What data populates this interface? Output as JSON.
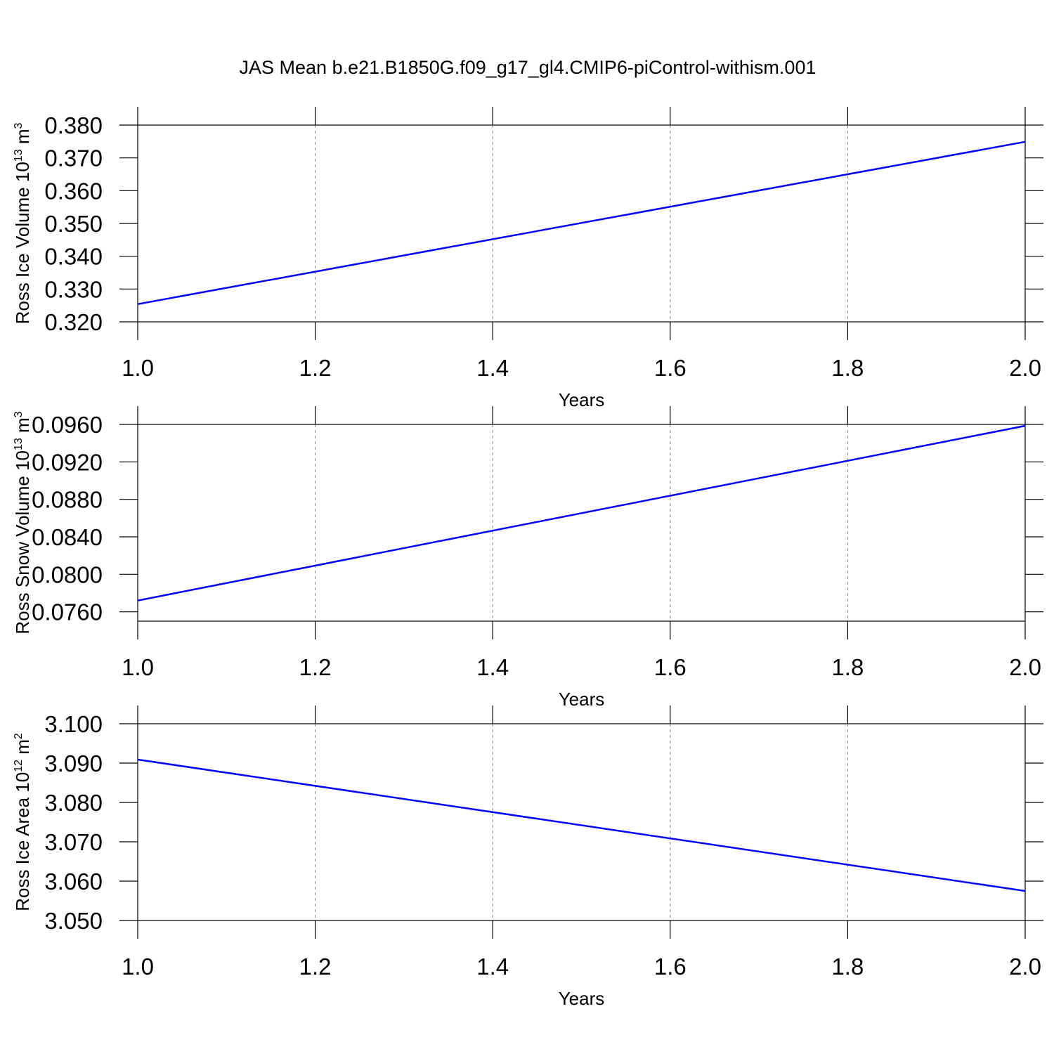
{
  "chart_data": [
    {
      "type": "line",
      "title": "JAS Mean b.e21.B1850G.f09_g17_gl4.CMIP6-piControl-withism.001",
      "ylabel": [
        "Ross Ice Volume 10",
        "13",
        " m",
        "3"
      ],
      "xlabel": "Years",
      "x": [
        1.0,
        2.0
      ],
      "values": [
        0.3254,
        0.3749
      ],
      "color": "#0000ff",
      "xlim": [
        1.0,
        2.0
      ],
      "xticks": [
        {
          "value": 1.0,
          "label": "1.0"
        },
        1.2,
        1.4,
        1.6,
        1.8,
        {
          "value": 2.0,
          "label": "2.0"
        }
      ],
      "ylim": [
        0.32,
        0.38
      ],
      "yticks": [
        {
          "value": 0.32,
          "label": "0.320"
        },
        {
          "value": 0.33,
          "label": "0.330"
        },
        {
          "value": 0.34,
          "label": "0.340"
        },
        {
          "value": 0.35,
          "label": "0.350"
        },
        {
          "value": 0.36,
          "label": "0.360"
        },
        {
          "value": 0.37,
          "label": "0.370"
        },
        {
          "value": 0.38,
          "label": "0.380"
        }
      ],
      "grid": true
    },
    {
      "type": "line",
      "ylabel": [
        "Ross Snow Volume 10",
        "13",
        " m",
        "3"
      ],
      "xlabel": "Years",
      "x": [
        1.0,
        2.0
      ],
      "values": [
        0.0772,
        0.09585
      ],
      "color": "#0000ff",
      "xlim": [
        1.0,
        2.0
      ],
      "xticks": [
        {
          "value": 1.0,
          "label": "1.0"
        },
        1.2,
        1.4,
        1.6,
        1.8,
        {
          "value": 2.0,
          "label": "2.0"
        }
      ],
      "ylim": [
        0.075,
        0.096
      ],
      "yticks": [
        {
          "value": 0.076,
          "label": "0.0760"
        },
        {
          "value": 0.08,
          "label": "0.0800"
        },
        {
          "value": 0.084,
          "label": "0.0840"
        },
        {
          "value": 0.088,
          "label": "0.0880"
        },
        {
          "value": 0.092,
          "label": "0.0920"
        },
        {
          "value": 0.096,
          "label": "0.0960"
        }
      ],
      "grid": true
    },
    {
      "type": "line",
      "ylabel": [
        "Ross Ice Area 10",
        "12",
        " m",
        "2"
      ],
      "xlabel": "Years",
      "x": [
        1.0,
        2.0
      ],
      "values": [
        3.0909,
        3.0575
      ],
      "color": "#0000ff",
      "xlim": [
        1.0,
        2.0
      ],
      "xticks": [
        {
          "value": 1.0,
          "label": "1.0"
        },
        1.2,
        1.4,
        1.6,
        1.8,
        {
          "value": 2.0,
          "label": "2.0"
        }
      ],
      "ylim": [
        3.05,
        3.1
      ],
      "yticks": [
        {
          "value": 3.05,
          "label": "3.050"
        },
        {
          "value": 3.06,
          "label": "3.060"
        },
        {
          "value": 3.07,
          "label": "3.070"
        },
        {
          "value": 3.08,
          "label": "3.080"
        },
        {
          "value": 3.09,
          "label": "3.090"
        },
        {
          "value": 3.1,
          "label": "3.100"
        }
      ],
      "grid": true
    }
  ]
}
